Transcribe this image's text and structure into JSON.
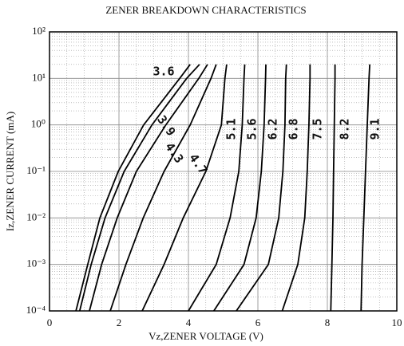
{
  "chart_data": {
    "type": "line",
    "title": "ZENER BREAKDOWN CHARACTERISTICS",
    "x_label": "Vz,ZENER VOLTAGE (V)",
    "y_label": "Iz,ZENER CURRENT (mA)",
    "xlim": [
      0,
      10
    ],
    "xticks": [
      0,
      2,
      4,
      6,
      8,
      10
    ],
    "ylim": [
      0.0001,
      100
    ],
    "yticks": [
      {
        "value": 0.0001,
        "label": "10⁻⁴"
      },
      {
        "value": 0.001,
        "label": "10⁻³"
      },
      {
        "value": 0.01,
        "label": "10⁻²"
      },
      {
        "value": 0.1,
        "label": "10⁻¹"
      },
      {
        "value": 1,
        "label": "10⁰"
      },
      {
        "value": 10,
        "label": "10¹"
      },
      {
        "value": 100,
        "label": "10²"
      }
    ],
    "ylog": true,
    "grid": true,
    "color": "#000000",
    "series": [
      {
        "name": "3.6",
        "x": [
          0.76,
          1.1,
          1.45,
          1.98,
          2.71,
          3.75,
          4.05
        ],
        "values": [
          0.0001,
          0.001,
          0.01,
          0.1,
          1,
          10,
          20
        ]
      },
      {
        "name": "3.9",
        "x": [
          0.87,
          1.2,
          1.6,
          2.15,
          2.95,
          3.95,
          4.32
        ],
        "values": [
          0.0001,
          0.001,
          0.01,
          0.1,
          1,
          10,
          20
        ]
      },
      {
        "name": "4.3",
        "x": [
          1.15,
          1.5,
          1.95,
          2.5,
          3.35,
          4.3,
          4.55
        ],
        "values": [
          0.0001,
          0.001,
          0.01,
          0.1,
          1,
          10,
          20
        ]
      },
      {
        "name": "4.7",
        "x": [
          1.75,
          2.2,
          2.7,
          3.3,
          4.05,
          4.65,
          4.8
        ],
        "values": [
          0.0001,
          0.001,
          0.01,
          0.1,
          1,
          10,
          20
        ]
      },
      {
        "name": "5.1",
        "x": [
          2.67,
          3.3,
          3.85,
          4.5,
          4.95,
          5.05,
          5.1
        ],
        "values": [
          0.0001,
          0.001,
          0.01,
          0.1,
          1,
          10,
          20
        ]
      },
      {
        "name": "5.6",
        "x": [
          4.0,
          4.8,
          5.2,
          5.45,
          5.55,
          5.6,
          5.62
        ],
        "values": [
          0.0001,
          0.001,
          0.01,
          0.1,
          1,
          10,
          20
        ]
      },
      {
        "name": "6.2",
        "x": [
          4.73,
          5.6,
          5.95,
          6.1,
          6.18,
          6.22,
          6.23
        ],
        "values": [
          0.0001,
          0.001,
          0.01,
          0.1,
          1,
          10,
          20
        ]
      },
      {
        "name": "6.8",
        "x": [
          5.38,
          6.3,
          6.6,
          6.72,
          6.78,
          6.8,
          6.82
        ],
        "values": [
          0.0001,
          0.001,
          0.01,
          0.1,
          1,
          10,
          20
        ]
      },
      {
        "name": "7.5",
        "x": [
          6.7,
          7.15,
          7.35,
          7.42,
          7.47,
          7.5,
          7.5
        ],
        "values": [
          0.0001,
          0.001,
          0.01,
          0.1,
          1,
          10,
          20
        ]
      },
      {
        "name": "8.2",
        "x": [
          8.1,
          8.13,
          8.16,
          8.18,
          8.2,
          8.22,
          8.22
        ],
        "values": [
          0.0001,
          0.001,
          0.01,
          0.1,
          1,
          10,
          20
        ]
      },
      {
        "name": "9.1",
        "x": [
          8.97,
          9.0,
          9.05,
          9.1,
          9.15,
          9.2,
          9.22
        ],
        "values": [
          0.0001,
          0.001,
          0.01,
          0.1,
          1,
          10,
          20
        ]
      }
    ]
  }
}
